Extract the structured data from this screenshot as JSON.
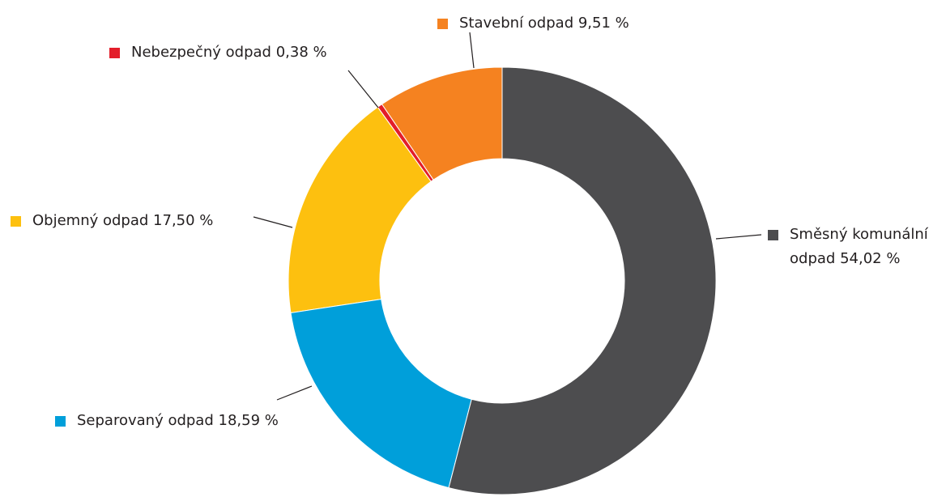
{
  "chart_data": {
    "type": "donut",
    "categories": [
      "Směsný komunální odpad",
      "Separovaný odpad",
      "Objemný odpad",
      "Nebezpečný odpad",
      "Stavební odpad"
    ],
    "values": [
      54.02,
      18.59,
      17.5,
      0.38,
      9.51
    ],
    "value_labels": [
      "54,02 %",
      "18,59 %",
      "17,50 %",
      "0,38 %",
      "9,51 %"
    ],
    "colors": [
      "#4d4d4f",
      "#009fda",
      "#fdc00f",
      "#e31e2a",
      "#f58220"
    ]
  }
}
